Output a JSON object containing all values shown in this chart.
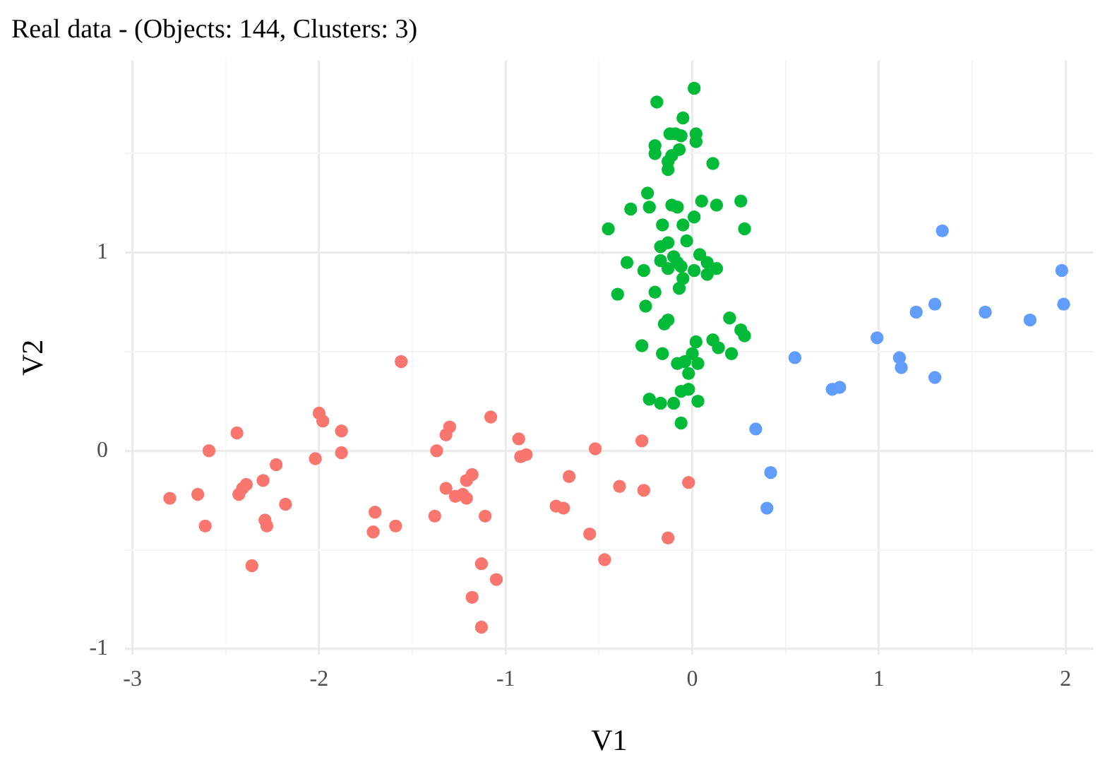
{
  "chart_data": {
    "type": "scatter",
    "title": "Real data - (Objects: 144, Clusters: 3)",
    "xlabel": "V1",
    "ylabel": "V2",
    "xlim": [
      -3.04,
      2.15
    ],
    "ylim": [
      -1.03,
      1.97
    ],
    "xticks": [
      -3,
      {
        "value": -2.5,
        "label": null
      },
      -2,
      {
        "value": -1.5,
        "label": null
      },
      -1,
      {
        "value": -0.5,
        "label": null
      },
      0,
      {
        "value": 0.5,
        "label": null
      },
      1,
      {
        "value": 1.5,
        "label": null
      },
      2
    ],
    "yticks": [
      -1,
      {
        "value": -0.5,
        "label": null
      },
      0,
      {
        "value": 0.5,
        "label": null
      },
      1,
      {
        "value": 1.5,
        "label": null
      }
    ],
    "grid": true,
    "legend": false,
    "marker": "circle",
    "series": [
      {
        "color": "#f8766d",
        "x": [
          -1.56,
          -2.44,
          -2.59,
          -2.8,
          -2.65,
          -2.61,
          -2.43,
          -2.41,
          -2.39,
          -2.3,
          -2.23,
          -2.18,
          -2.29,
          -2.28,
          -2.36,
          -2.0,
          -1.98,
          -1.88,
          -2.02,
          -1.88,
          -1.7,
          -1.71,
          -1.59,
          -1.38,
          -1.37,
          -1.32,
          -1.3,
          -1.08,
          -0.93,
          -0.92,
          -0.89,
          -1.32,
          -1.27,
          -1.23,
          -1.21,
          -1.21,
          -1.18,
          -1.11,
          -1.13,
          -1.05,
          -1.18,
          -1.13,
          -0.66,
          -0.73,
          -0.69,
          -0.55,
          -0.47,
          -0.52,
          -0.39,
          -0.26,
          -0.27,
          -0.02,
          -0.13
        ],
        "values": [
          0.45,
          0.09,
          0.0,
          -0.24,
          -0.22,
          -0.38,
          -0.22,
          -0.19,
          -0.17,
          -0.15,
          -0.07,
          -0.27,
          -0.35,
          -0.38,
          -0.58,
          0.19,
          0.15,
          0.1,
          -0.04,
          -0.01,
          -0.31,
          -0.41,
          -0.38,
          -0.33,
          0.0,
          0.08,
          0.12,
          0.17,
          0.06,
          -0.03,
          -0.02,
          -0.19,
          -0.23,
          -0.22,
          -0.24,
          -0.15,
          -0.12,
          -0.33,
          -0.57,
          -0.65,
          -0.74,
          -0.89,
          -0.13,
          -0.28,
          -0.29,
          -0.42,
          -0.55,
          0.01,
          -0.18,
          -0.2,
          0.05,
          -0.16,
          -0.44
        ]
      },
      {
        "color": "#00ba38",
        "x": [
          0.01,
          -0.19,
          -0.05,
          -0.12,
          -0.09,
          -0.06,
          0.02,
          0.02,
          -0.2,
          -0.2,
          -0.07,
          -0.11,
          -0.13,
          -0.13,
          0.11,
          -0.24,
          -0.33,
          -0.23,
          -0.11,
          -0.08,
          0.05,
          0.13,
          0.26,
          -0.45,
          0.28,
          -0.16,
          -0.05,
          0.01,
          -0.03,
          -0.17,
          -0.13,
          -0.35,
          -0.26,
          -0.17,
          -0.1,
          -0.08,
          -0.06,
          -0.13,
          0.01,
          0.04,
          0.08,
          0.13,
          0.08,
          -0.05,
          -0.07,
          -0.4,
          -0.2,
          -0.25,
          -0.13,
          -0.15,
          -0.27,
          0.02,
          0.11,
          0.14,
          -0.16,
          -0.08,
          -0.04,
          0.0,
          0.03,
          -0.02,
          -0.23,
          -0.17,
          -0.1,
          -0.06,
          -0.02,
          0.03,
          -0.06,
          0.2,
          0.26,
          0.28,
          0.21
        ],
        "values": [
          1.83,
          1.76,
          1.68,
          1.6,
          1.6,
          1.59,
          1.6,
          1.56,
          1.54,
          1.5,
          1.52,
          1.49,
          1.46,
          1.42,
          1.45,
          1.3,
          1.22,
          1.23,
          1.24,
          1.23,
          1.26,
          1.24,
          1.26,
          1.12,
          1.12,
          1.14,
          1.14,
          1.18,
          1.06,
          1.03,
          1.05,
          0.95,
          0.91,
          0.96,
          0.98,
          0.95,
          0.93,
          0.92,
          0.91,
          0.99,
          0.95,
          0.92,
          0.89,
          0.87,
          0.82,
          0.79,
          0.8,
          0.73,
          0.66,
          0.64,
          0.53,
          0.55,
          0.56,
          0.52,
          0.49,
          0.44,
          0.45,
          0.49,
          0.44,
          0.39,
          0.26,
          0.24,
          0.24,
          0.3,
          0.31,
          0.25,
          0.14,
          0.67,
          0.61,
          0.58,
          0.49
        ]
      },
      {
        "color": "#619cff",
        "x": [
          1.34,
          1.98,
          1.99,
          1.3,
          1.2,
          1.57,
          1.81,
          0.99,
          1.11,
          1.12,
          1.3,
          0.55,
          0.75,
          0.79,
          0.34,
          0.42,
          0.4
        ],
        "values": [
          1.11,
          0.91,
          0.74,
          0.74,
          0.7,
          0.7,
          0.66,
          0.57,
          0.47,
          0.42,
          0.37,
          0.47,
          0.31,
          0.32,
          0.11,
          -0.11,
          -0.29
        ]
      }
    ]
  }
}
